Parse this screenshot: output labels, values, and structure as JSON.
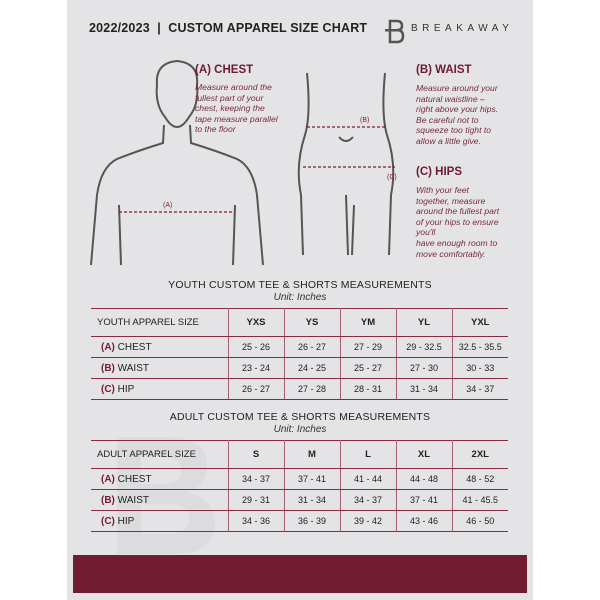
{
  "header": {
    "title": "2022/2023  |  CUSTOM APPAREL SIZE CHART",
    "brand": "BREAKAWAY",
    "logo_letter": "B"
  },
  "colors": {
    "accent": "#721c31",
    "background": "#e4e4e6"
  },
  "notes": {
    "chest": {
      "heading": "(A) CHEST",
      "text": "Measure around the\nfullest part of your\nchest, keeping the\ntape measure parallel\nto the floor",
      "marker": "(A)"
    },
    "waist": {
      "heading": "(B) WAIST",
      "text": "Measure around your\nnatural waistline –\nright above your hips.\nBe careful not to\nsqueeze too tight to\nallow a little give.",
      "marker": "(B)"
    },
    "hips": {
      "heading": "(C) HIPS",
      "text": "With your feet\ntogether, measure\naround the fullest part\nof your hips to ensure\nyou'll\nhave enough room to\nmove comfortably.",
      "marker": "(C)"
    }
  },
  "youth": {
    "title": "YOUTH CUSTOM TEE & SHORTS MEASUREMENTS",
    "unit": "Unit: Inches",
    "header_label": "YOUTH APPAREL SIZE",
    "sizes": [
      "YXS",
      "YS",
      "YM",
      "YL",
      "YXL"
    ],
    "rows": [
      {
        "code": "(A)",
        "name": "CHEST",
        "values": [
          "25 - 26",
          "26 - 27",
          "27 - 29",
          "29 - 32.5",
          "32.5 - 35.5"
        ]
      },
      {
        "code": "(B)",
        "name": "WAIST",
        "values": [
          "23 - 24",
          "24 - 25",
          "25 - 27",
          "27 - 30",
          "30 - 33"
        ]
      },
      {
        "code": "(C)",
        "name": "HIP",
        "values": [
          "26 - 27",
          "27 - 28",
          "28 - 31",
          "31 - 34",
          "34 - 37"
        ]
      }
    ]
  },
  "adult": {
    "title": "ADULT CUSTOM TEE & SHORTS MEASUREMENTS",
    "unit": "Unit: Inches",
    "header_label": "ADULT APPAREL SIZE",
    "sizes": [
      "S",
      "M",
      "L",
      "XL",
      "2XL"
    ],
    "rows": [
      {
        "code": "(A)",
        "name": "CHEST",
        "values": [
          "34 - 37",
          "37 - 41",
          "41 - 44",
          "44 - 48",
          "48 - 52"
        ]
      },
      {
        "code": "(B)",
        "name": "WAIST",
        "values": [
          "29 - 31",
          "31 - 34",
          "34 - 37",
          "37 - 41",
          "41 - 45.5"
        ]
      },
      {
        "code": "(C)",
        "name": "HIP",
        "values": [
          "34 - 36",
          "36 - 39",
          "39 - 42",
          "43 - 46",
          "46 - 50"
        ]
      }
    ]
  }
}
